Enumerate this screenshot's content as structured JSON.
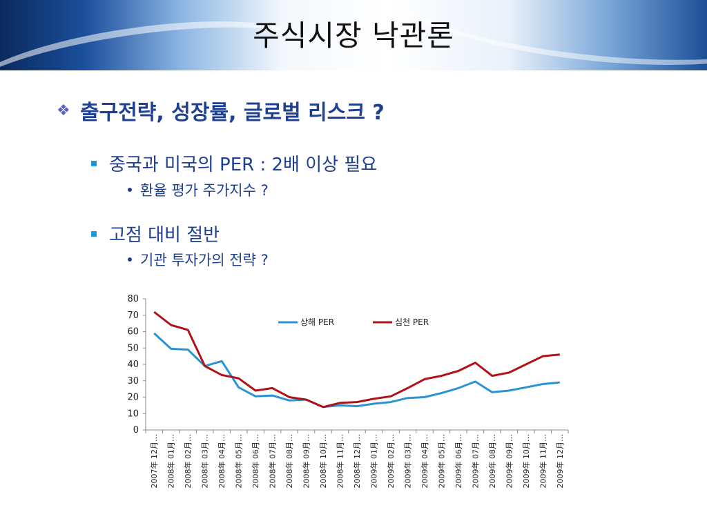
{
  "slide": {
    "title": "주식시장 낙관론",
    "bullet": "출구전략, 성장률, 글로벌 리스크 ?",
    "items": [
      {
        "text": "중국과 미국의 PER : 2배 이상 필요",
        "sub": "환율 평가 주가지수 ?"
      },
      {
        "text": "고점 대비 절반",
        "sub": "기관 투자가의 전략 ?"
      }
    ]
  },
  "colors": {
    "series1": "#2a93d3",
    "series2": "#b01217",
    "text_blue": "#1f3f92"
  },
  "chart_data": {
    "type": "line",
    "ylim": [
      0,
      80
    ],
    "yticks": [
      0,
      10,
      20,
      30,
      40,
      50,
      60,
      70,
      80
    ],
    "legend_position": "top-center",
    "categories": [
      "2007年 12月…",
      "2008年 01月…",
      "2008年 02月…",
      "2008年 03月…",
      "2008年 04月…",
      "2008年 05月…",
      "2008年 06月…",
      "2008年 07月…",
      "2008年 08月…",
      "2008年 09月…",
      "2008年 10月…",
      "2008年 11月…",
      "2008年 12月…",
      "2009年 01月…",
      "2009年 02月…",
      "2009年 03月…",
      "2009年 04月…",
      "2009年 05月…",
      "2009年 06月…",
      "2009年 07月…",
      "2009年 08月…",
      "2009年 09月…",
      "2009年 10月…",
      "2009年 11月…",
      "2009年 12月…"
    ],
    "series": [
      {
        "name": "상해 PER",
        "values": [
          59,
          49.5,
          49,
          39,
          42,
          26,
          20.5,
          21,
          18,
          18.5,
          14,
          15,
          14.5,
          16,
          17,
          19.5,
          20,
          22.5,
          25.5,
          29.5,
          23,
          24,
          26,
          28,
          29
        ]
      },
      {
        "name": "심천 PER",
        "values": [
          72,
          64,
          61,
          39,
          33.5,
          31.5,
          24,
          25.5,
          20,
          18.5,
          14,
          16.5,
          17,
          19,
          20.5,
          25.5,
          31,
          33,
          36,
          41,
          33,
          35,
          40,
          45,
          46
        ]
      }
    ]
  }
}
